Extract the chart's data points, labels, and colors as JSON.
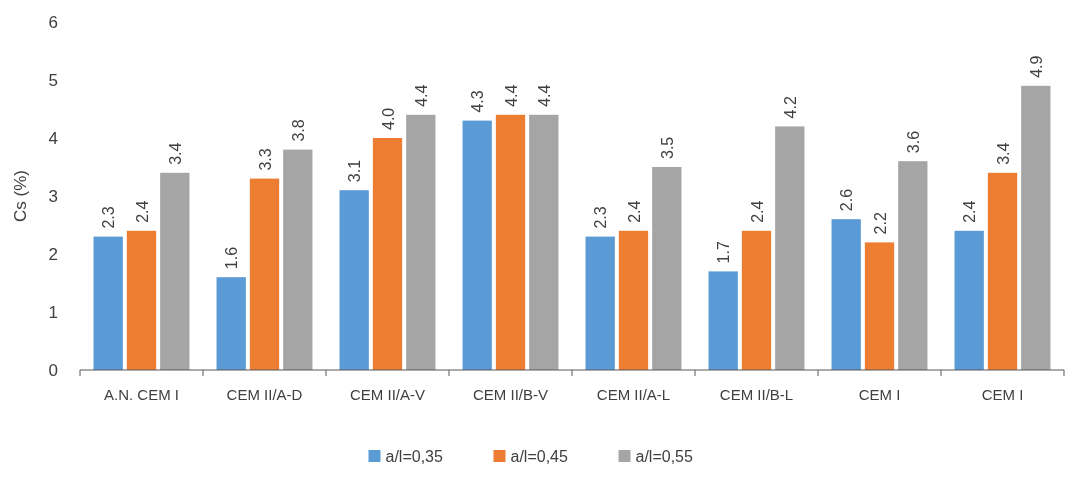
{
  "chart_data": {
    "type": "bar",
    "ylabel": "Cs (%)",
    "categories": [
      "A.N. CEM I",
      "CEM II/A-D",
      "CEM II/A-V",
      "CEM II/B-V",
      "CEM II/A-L",
      "CEM II/B-L",
      "CEM I",
      "CEM I"
    ],
    "series": [
      {
        "name": "a/l=0,35",
        "color": "#5b9bd5",
        "values": [
          2.3,
          1.6,
          3.1,
          4.3,
          2.3,
          1.7,
          2.6,
          2.4
        ],
        "value_labels": [
          "2.3",
          "1.6",
          "3.1",
          "4.3",
          "2.3",
          "1.7",
          "2.6",
          "2.4"
        ]
      },
      {
        "name": "a/l=0,45",
        "color": "#ed7d31",
        "values": [
          2.4,
          3.3,
          4.0,
          4.4,
          2.4,
          2.4,
          2.2,
          3.4
        ],
        "value_labels": [
          "2.4",
          "3.3",
          "4.0",
          "4.4",
          "2.4",
          "2.4",
          "2.2",
          "3.4"
        ]
      },
      {
        "name": "a/l=0,55",
        "color": "#a5a5a5",
        "values": [
          3.4,
          3.8,
          4.4,
          4.4,
          3.5,
          4.2,
          3.6,
          4.9
        ],
        "value_labels": [
          "3.4",
          "3.8",
          "4.4",
          "4.4",
          "3.5",
          "4.2",
          "3.6",
          "4.9"
        ]
      }
    ],
    "ylim": [
      0,
      6
    ],
    "yticks": [
      0,
      1,
      2,
      3,
      4,
      5,
      6
    ],
    "grid": false,
    "legend": "bottom"
  }
}
